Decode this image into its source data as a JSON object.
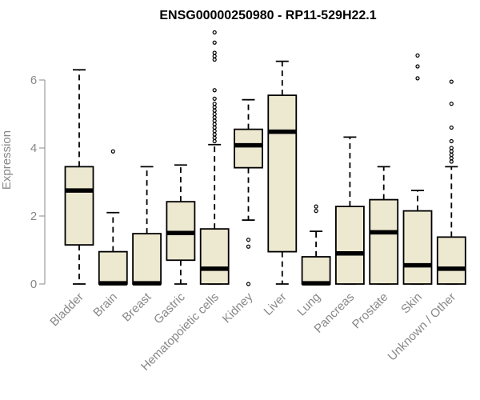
{
  "chart_data": {
    "type": "boxplot",
    "title": "ENSG00000250980 - RP11-529H22.1",
    "xlabel": "",
    "ylabel": "Expression",
    "ylim": [
      0,
      7.5
    ],
    "yticks": [
      0,
      2,
      4,
      6
    ],
    "grid": false,
    "colors": {
      "box_fill": "#ede8d0",
      "stroke": "#000000",
      "axis_text": "#888888"
    },
    "categories": [
      "Bladder",
      "Brain",
      "Breast",
      "Gastric",
      "Hematopoietic cells",
      "Kidney",
      "Liver",
      "Lung",
      "Pancreas",
      "Prostate",
      "Skin",
      "Unknown / Other"
    ],
    "boxes": [
      {
        "q1": 1.15,
        "median": 2.75,
        "q3": 3.45,
        "whisker_low": 0,
        "whisker_high": 6.3,
        "outliers": []
      },
      {
        "q1": 0,
        "median": 0.02,
        "q3": 0.95,
        "whisker_low": 0,
        "whisker_high": 2.1,
        "outliers": [
          3.9
        ]
      },
      {
        "q1": 0,
        "median": 0.02,
        "q3": 1.48,
        "whisker_low": 0,
        "whisker_high": 3.45,
        "outliers": []
      },
      {
        "q1": 0.7,
        "median": 1.5,
        "q3": 2.42,
        "whisker_low": 0,
        "whisker_high": 3.5,
        "outliers": []
      },
      {
        "q1": 0,
        "median": 0.45,
        "q3": 1.62,
        "whisker_low": 0,
        "whisker_high": 4.1,
        "outliers": [
          4.2,
          4.3,
          4.4,
          4.5,
          4.6,
          4.7,
          4.8,
          4.9,
          5.0,
          5.1,
          5.2,
          5.3,
          5.45,
          5.7,
          6.6,
          6.7,
          6.8,
          7.1,
          7.4
        ]
      },
      {
        "q1": 3.42,
        "median": 4.08,
        "q3": 4.55,
        "whisker_low": 1.88,
        "whisker_high": 5.42,
        "outliers": [
          1.3,
          1.1,
          0
        ]
      },
      {
        "q1": 0.95,
        "median": 4.48,
        "q3": 5.55,
        "whisker_low": 0,
        "whisker_high": 6.55,
        "outliers": []
      },
      {
        "q1": 0,
        "median": 0.02,
        "q3": 0.8,
        "whisker_low": 0,
        "whisker_high": 1.55,
        "outliers": [
          2.15,
          2.28
        ]
      },
      {
        "q1": 0,
        "median": 0.9,
        "q3": 2.28,
        "whisker_low": 0,
        "whisker_high": 4.32,
        "outliers": []
      },
      {
        "q1": 0,
        "median": 1.52,
        "q3": 2.48,
        "whisker_low": 0,
        "whisker_high": 3.45,
        "outliers": []
      },
      {
        "q1": 0,
        "median": 0.55,
        "q3": 2.15,
        "whisker_low": 0,
        "whisker_high": 2.75,
        "outliers": [
          6.05,
          6.4,
          6.72
        ]
      },
      {
        "q1": 0,
        "median": 0.45,
        "q3": 1.38,
        "whisker_low": 0,
        "whisker_high": 3.45,
        "outliers": [
          3.6,
          3.7,
          3.8,
          3.9,
          4.0,
          4.2,
          4.6,
          5.3,
          5.95
        ]
      }
    ]
  }
}
